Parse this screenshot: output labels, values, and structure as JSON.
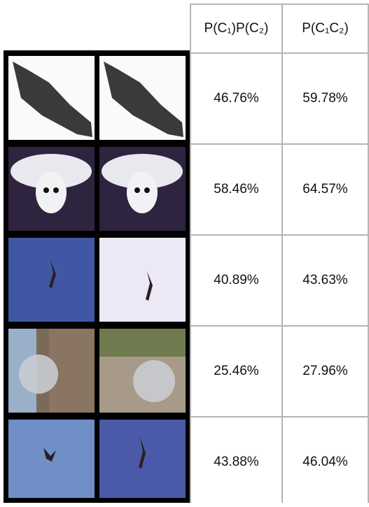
{
  "table": {
    "headers": [
      "P(C₁)P(C₂)",
      "P(C₁C₂)"
    ],
    "rows": [
      [
        "46.76%",
        "59.78%"
      ],
      [
        "58.46%",
        "64.57%"
      ],
      [
        "40.89%",
        "43.63%"
      ],
      [
        "25.46%",
        "27.96%"
      ],
      [
        "43.88%",
        "46.04%"
      ]
    ]
  }
}
